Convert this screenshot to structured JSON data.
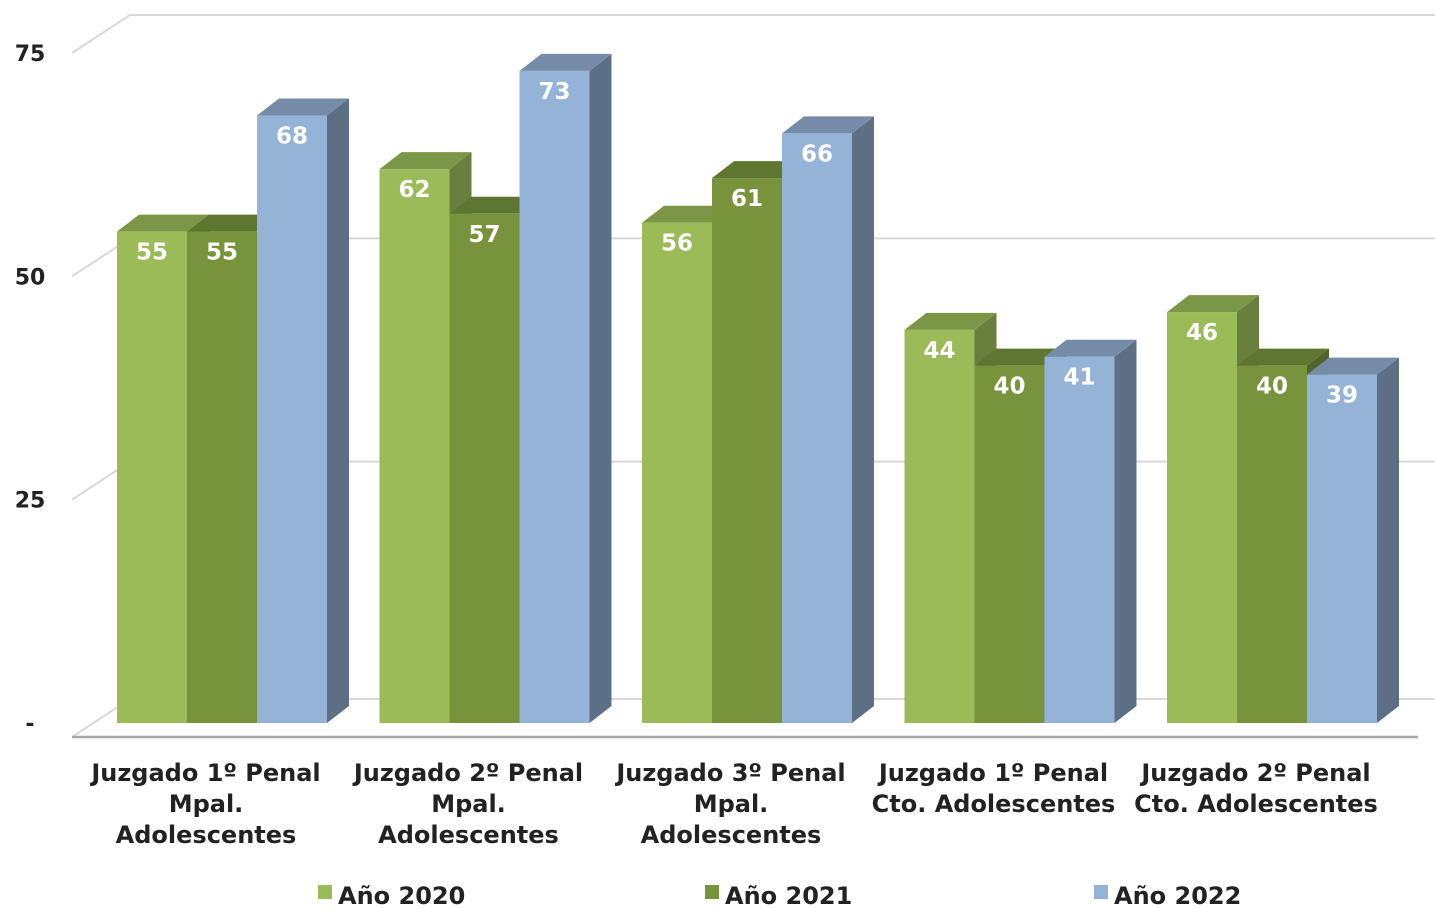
{
  "chart_data": {
    "type": "bar",
    "categories": [
      [
        "Juzgado 1º Penal",
        "Mpal.",
        "Adolescentes"
      ],
      [
        "Juzgado 2º Penal",
        "Mpal.",
        "Adolescentes"
      ],
      [
        "Juzgado 3º Penal",
        "Mpal.",
        "Adolescentes"
      ],
      [
        "Juzgado 1º Penal",
        "Cto. Adolescentes"
      ],
      [
        "Juzgado 2º Penal",
        "Cto. Adolescentes"
      ]
    ],
    "series": [
      {
        "name": "Año 2020",
        "values": [
          55,
          62,
          56,
          44,
          46
        ],
        "color": "#9bbb59"
      },
      {
        "name": "Año 2021",
        "values": [
          55,
          57,
          61,
          40,
          40
        ],
        "color": "#77933c"
      },
      {
        "name": "Año 2022",
        "values": [
          68,
          73,
          66,
          41,
          39
        ],
        "color": "#95b3d7"
      }
    ],
    "yticks": [
      {
        "value": 0,
        "label": "-"
      },
      {
        "value": 25,
        "label": "25"
      },
      {
        "value": 50,
        "label": "50"
      },
      {
        "value": 75,
        "label": "75"
      }
    ],
    "ylim": [
      0,
      75
    ],
    "grid": true,
    "three_d": true,
    "legend_position": "bottom",
    "xlabel": "",
    "ylabel": "",
    "title": ""
  }
}
